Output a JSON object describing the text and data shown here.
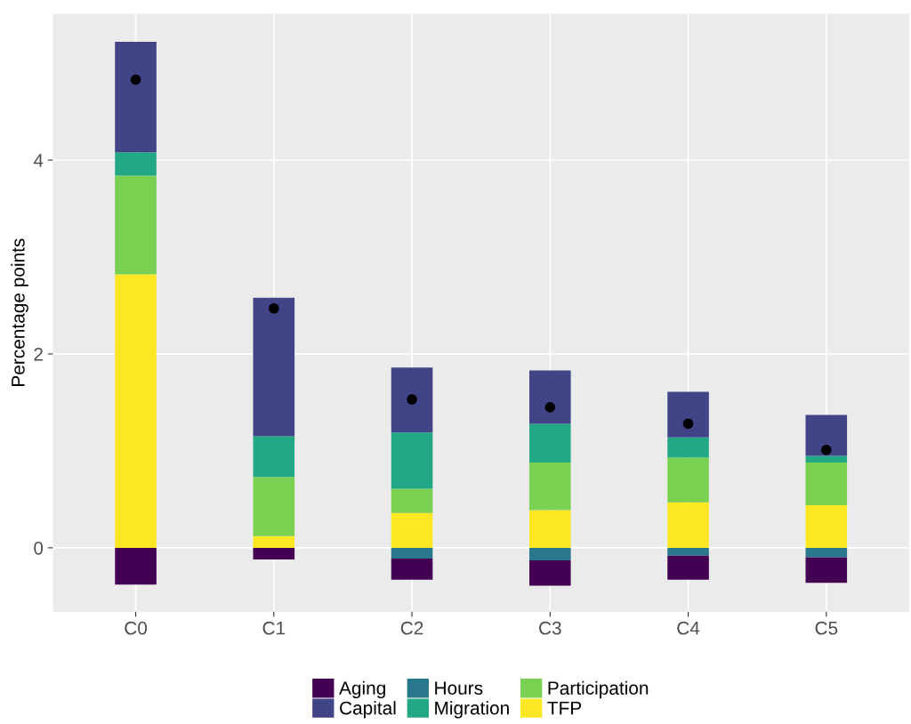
{
  "chart_data": {
    "type": "bar",
    "stacked": true,
    "ylabel": "Percentage points",
    "categories": [
      "C0",
      "C1",
      "C2",
      "C3",
      "C4",
      "C5"
    ],
    "series": [
      {
        "name": "TFP",
        "color": "#fde725",
        "values": [
          2.82,
          0.12,
          0.36,
          0.39,
          0.47,
          0.44
        ]
      },
      {
        "name": "Participation",
        "color": "#7ad151",
        "values": [
          1.02,
          0.61,
          0.25,
          0.49,
          0.46,
          0.44
        ]
      },
      {
        "name": "Migration",
        "color": "#22a884",
        "values": [
          0.24,
          0.42,
          0.58,
          0.4,
          0.21,
          0.07
        ]
      },
      {
        "name": "Hours",
        "color": "#2a788e",
        "values": [
          0.0,
          0.0,
          -0.11,
          -0.13,
          -0.08,
          -0.1
        ]
      },
      {
        "name": "Capital",
        "color": "#414487",
        "values": [
          1.14,
          1.43,
          0.67,
          0.55,
          0.47,
          0.42
        ]
      },
      {
        "name": "Aging",
        "color": "#440154",
        "values": [
          -0.38,
          -0.12,
          -0.22,
          -0.26,
          -0.25,
          -0.26
        ]
      },
      {
        "type": "scatter",
        "color": "#000000",
        "x": [
          "C0",
          "C1",
          "C2",
          "C3",
          "C4",
          "C5"
        ],
        "values": [
          4.83,
          2.47,
          1.53,
          1.45,
          1.28,
          1.01
        ]
      }
    ],
    "ylim": [
      -0.66,
      5.51
    ],
    "yticks": [
      0,
      2,
      4
    ],
    "grid": true,
    "legend": "bottom",
    "marker": "circle"
  }
}
